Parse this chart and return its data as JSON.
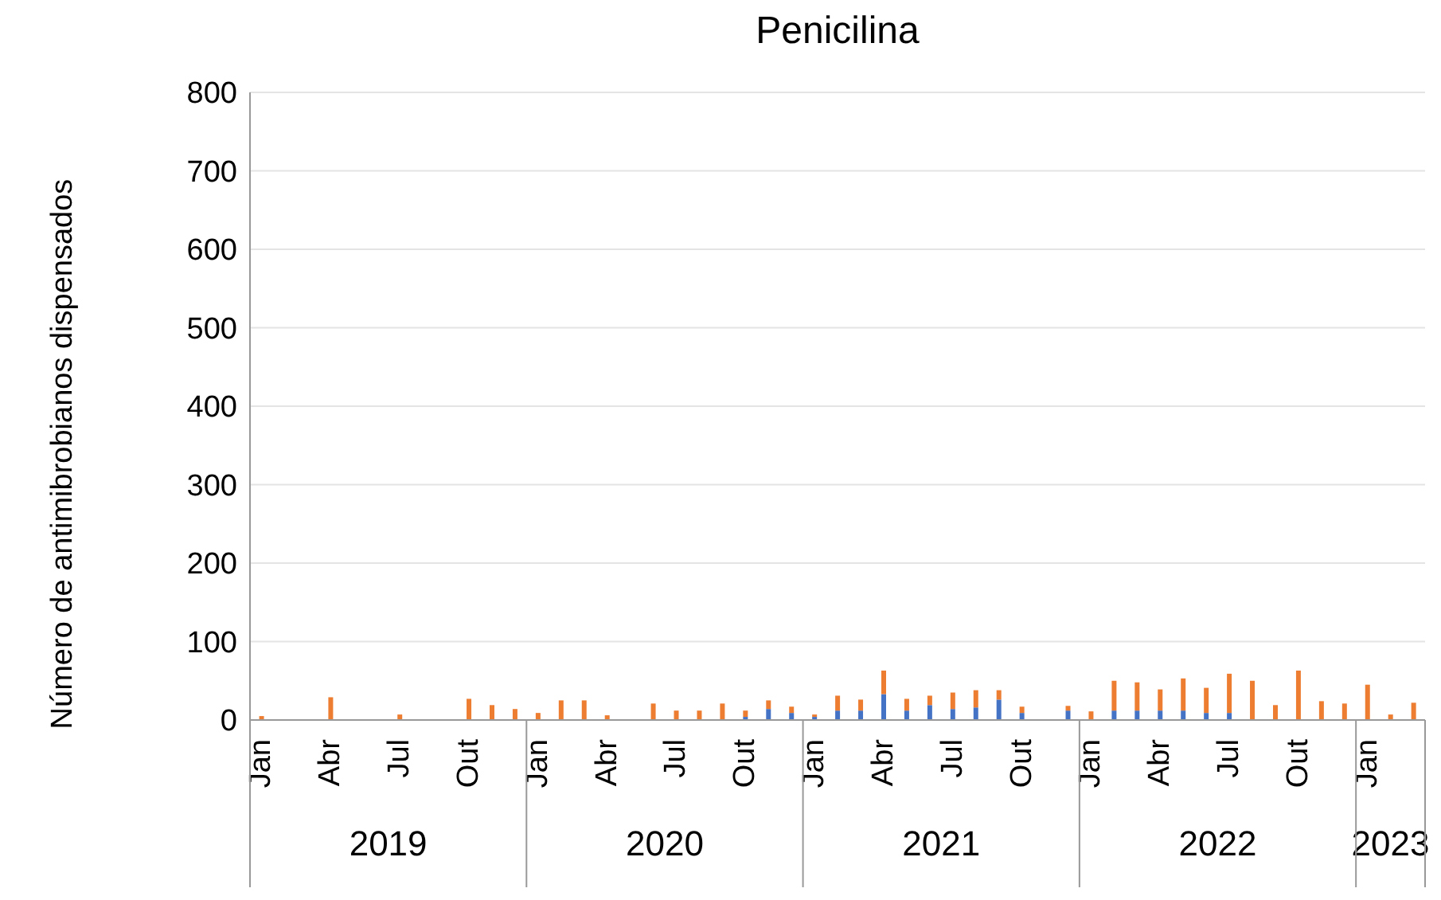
{
  "chart_data": {
    "type": "bar",
    "title": "Penicilina",
    "ylabel": "Número  de antimibrobianos dispensados",
    "categories": [
      "Jan",
      null,
      null,
      "Abr",
      null,
      null,
      "Jul",
      null,
      null,
      "Out",
      null,
      null,
      "Jan",
      null,
      null,
      "Abr",
      null,
      null,
      "Jul",
      null,
      null,
      "Out",
      null,
      null,
      "Jan",
      null,
      null,
      "Abr",
      null,
      null,
      "Jul",
      null,
      null,
      "Out",
      null,
      null,
      "Jan",
      null,
      null,
      "Abr",
      null,
      null,
      "Jul",
      null,
      null,
      "Out",
      null,
      null,
      "Jan",
      null,
      null
    ],
    "series": [
      {
        "color": "#4472c4",
        "values": [
          null,
          null,
          null,
          null,
          null,
          null,
          null,
          null,
          null,
          null,
          null,
          null,
          null,
          null,
          null,
          null,
          null,
          null,
          null,
          null,
          null,
          4,
          14,
          9,
          4,
          12,
          12,
          33,
          12,
          19,
          14,
          16,
          26,
          9,
          null,
          12,
          null,
          12,
          12,
          12,
          12,
          9,
          9,
          null,
          null,
          null,
          null,
          null,
          null,
          null,
          null
        ]
      },
      {
        "color": "#ed7d31",
        "values": [
          5,
          null,
          null,
          29,
          null,
          null,
          7,
          null,
          null,
          27,
          19,
          14,
          9,
          25,
          25,
          6,
          null,
          21,
          12,
          12,
          21,
          8,
          11,
          8,
          3,
          19,
          14,
          30,
          15,
          12,
          21,
          22,
          12,
          8,
          null,
          6,
          11,
          38,
          36,
          27,
          41,
          32,
          50,
          50,
          19,
          63,
          24,
          21,
          45,
          7,
          22
        ]
      }
    ],
    "stacked": true,
    "ylim": [
      0,
      800
    ],
    "yticks": [
      0,
      100,
      200,
      300,
      400,
      500,
      600,
      700,
      800
    ],
    "grid": "y",
    "legend": false,
    "annotations": [
      "2019",
      "2020",
      "2021",
      "2022",
      "2023"
    ]
  }
}
